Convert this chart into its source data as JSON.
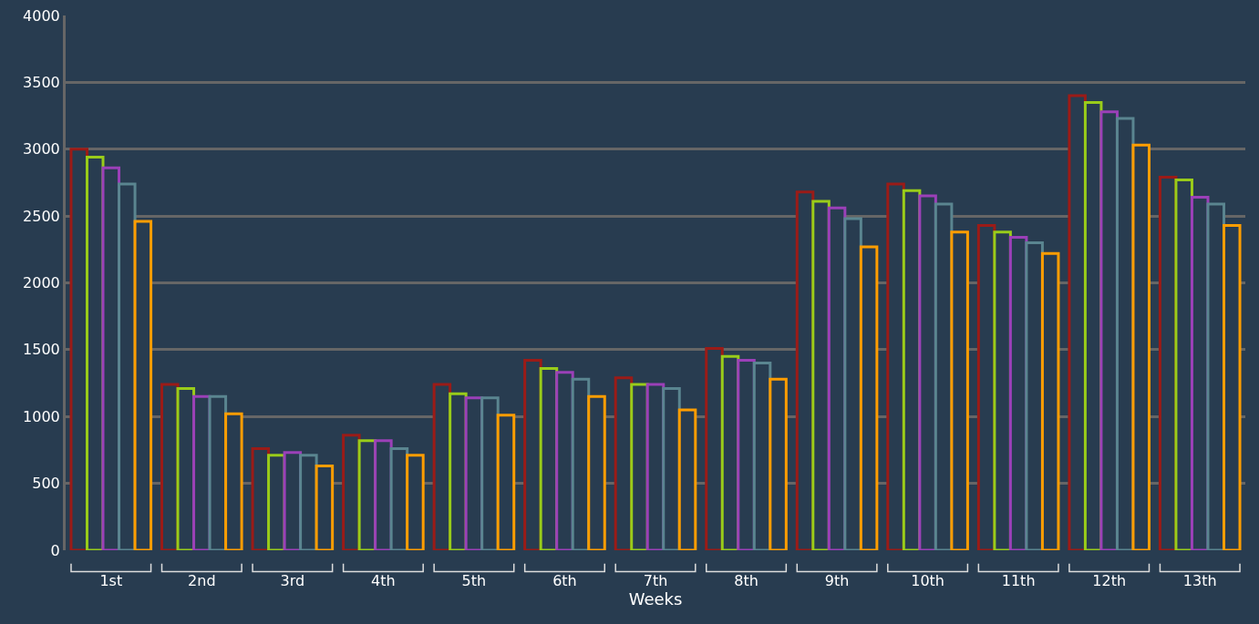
{
  "chart_data": {
    "type": "bar",
    "xlabel": "Weeks",
    "categories": [
      "1st",
      "2nd",
      "3rd",
      "4th",
      "5th",
      "6th",
      "7th",
      "8th",
      "9th",
      "10th",
      "11th",
      "12th",
      "13th"
    ],
    "series": [
      {
        "color": "#9b1b17",
        "values": [
          3000,
          1240,
          760,
          860,
          1240,
          1420,
          1290,
          1510,
          2680,
          2740,
          2430,
          3400,
          2790
        ]
      },
      {
        "color": "#99cc1a",
        "values": [
          2940,
          1210,
          710,
          820,
          1170,
          1360,
          1240,
          1450,
          2610,
          2690,
          2380,
          3350,
          2770
        ]
      },
      {
        "color": "#9b40b8",
        "values": [
          2860,
          1150,
          730,
          820,
          1140,
          1330,
          1240,
          1420,
          2560,
          2650,
          2340,
          3280,
          2640
        ]
      },
      {
        "color": "#5a8590",
        "values": [
          2740,
          1150,
          710,
          760,
          1140,
          1280,
          1210,
          1400,
          2480,
          2590,
          2300,
          3230,
          2590
        ]
      },
      {
        "color": "#ff9d00",
        "values": [
          2460,
          1020,
          630,
          710,
          1010,
          1150,
          1050,
          1280,
          2270,
          2380,
          2220,
          3030,
          2430
        ]
      }
    ],
    "ylim": [
      0,
      4000
    ],
    "yticks": [
      0,
      500,
      1000,
      1500,
      2000,
      2500,
      3000,
      3500,
      4000
    ],
    "grid": "y"
  }
}
